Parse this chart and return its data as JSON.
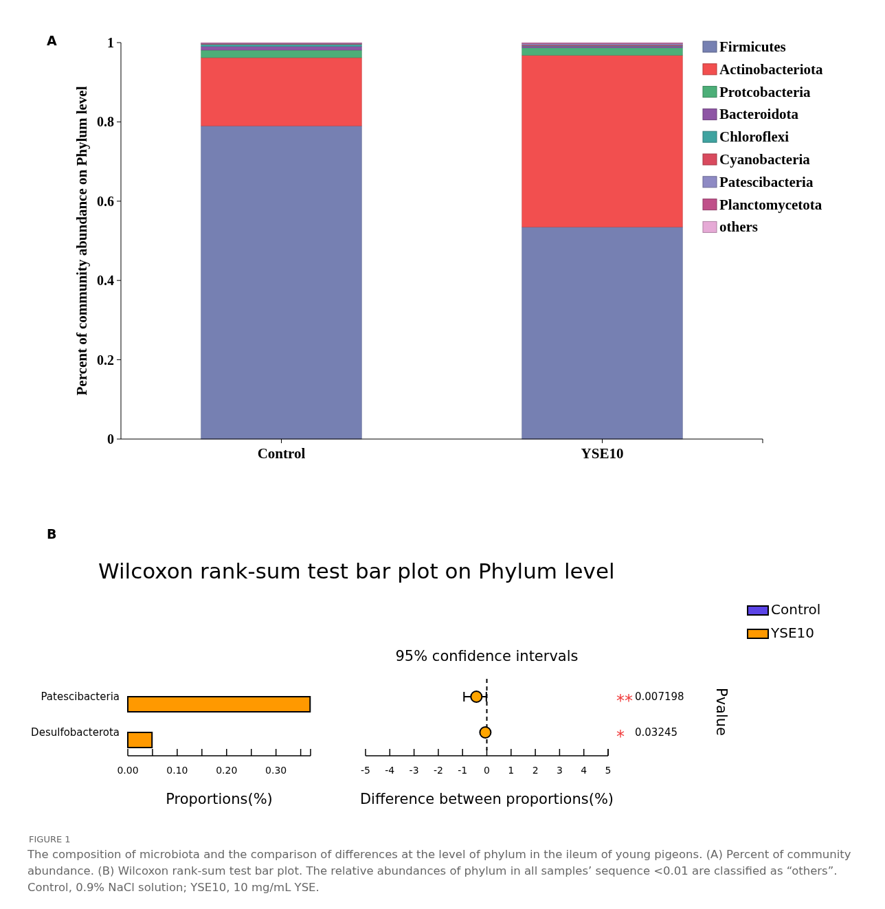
{
  "chart_data": [
    {
      "type": "bar",
      "stacked": true,
      "categories": [
        "Control",
        "YSE10"
      ],
      "ylabel": "Percent of community abundance on Phylum level",
      "ylim": [
        0,
        1
      ],
      "yticks": [
        0,
        0.2,
        0.4,
        0.6,
        0.8,
        1
      ],
      "legend": "right",
      "annotations": [
        "A"
      ],
      "series": [
        {
          "name": "Firmicutes",
          "color": "#7680b2",
          "values": [
            0.79,
            0.535
          ]
        },
        {
          "name": "Actinobacteriota",
          "color": "#f24f4f",
          "values": [
            0.172,
            0.433
          ]
        },
        {
          "name": "Protcobacteria",
          "color": "#4caf78",
          "values": [
            0.019,
            0.019
          ]
        },
        {
          "name": "Bacteroidota",
          "color": "#8e55a5",
          "values": [
            0.009,
            0.004
          ]
        },
        {
          "name": "Chloroflexi",
          "color": "#3fa3a0",
          "values": [
            0.006,
            0.001
          ]
        },
        {
          "name": "Cyanobacteria",
          "color": "#d94a5e",
          "values": [
            0.001,
            0.002
          ]
        },
        {
          "name": "Patescibacteria",
          "color": "#8e8ac4",
          "values": [
            0.001,
            0.003
          ]
        },
        {
          "name": "Planctomycetota",
          "color": "#c0508a",
          "values": [
            0.001,
            0.002
          ]
        },
        {
          "name": "others",
          "color": "#e6aad6",
          "values": [
            0.001,
            0.001
          ]
        }
      ]
    },
    {
      "type": "bar",
      "orientation": "horizontal",
      "title": "Wilcoxon rank-sum test bar plot on Phylum level",
      "categories": [
        "Patescibacteria",
        "Desulfobacterota"
      ],
      "xlabel": "Proportions(%)",
      "xlim": [
        0,
        0.37
      ],
      "xticks": [
        {
          "value": 0,
          "label": "0.00"
        },
        {
          "value": 0.05,
          "label": null
        },
        {
          "value": 0.1,
          "label": "0.10"
        },
        {
          "value": 0.15,
          "label": null
        },
        {
          "value": 0.2,
          "label": "0.20"
        },
        {
          "value": 0.25,
          "label": null
        },
        {
          "value": 0.3,
          "label": "0.30"
        },
        {
          "value": 0.35,
          "label": null
        }
      ],
      "legend": "top right",
      "annotations": [
        "B",
        "FIGURE 1",
        "The composition of microbiota and the comparison of differences at the level of phylum in the ileum of young pigeons. (A) Percent of community abundance. (B) Wilcoxon rank-sum test bar plot. The relative abundances of phylum in all samples’ sequence <0.01 are classified as “others”. Control, 0.9% NaCl solution; YSE10, 10 mg/mL YSE."
      ],
      "series": [
        {
          "name": "Control",
          "color": "#5b44e6",
          "values": [
            0,
            0
          ]
        },
        {
          "name": "YSE10",
          "color": "#ff9900",
          "values": [
            0.369,
            0.049
          ]
        }
      ]
    },
    {
      "type": "scatter",
      "orientation": "horizontal",
      "title": "95% confidence intervals",
      "categories": [
        null,
        null
      ],
      "xlabel": "Difference between proportions(%)",
      "y2label": "Pvalue",
      "xlim": [
        -5,
        5
      ],
      "xticks": [
        -5,
        -4,
        -3,
        -2,
        -1,
        0,
        1,
        2,
        3,
        4,
        5
      ],
      "tick_labels": "x",
      "marker": "circle",
      "ref_lines": [
        {
          "axis": "x",
          "value": 0,
          "line_style": "dashed"
        }
      ],
      "annotations": [
        "**",
        "0.007198",
        "*",
        "0.03245"
      ],
      "series": [
        {
          "color": "#ffa500",
          "values": [
            -0.43,
            -0.06
          ],
          "errors": [
            [
              -0.94,
              -0.02
            ],
            [
              -0.09,
              -0.02
            ]
          ]
        }
      ]
    }
  ]
}
